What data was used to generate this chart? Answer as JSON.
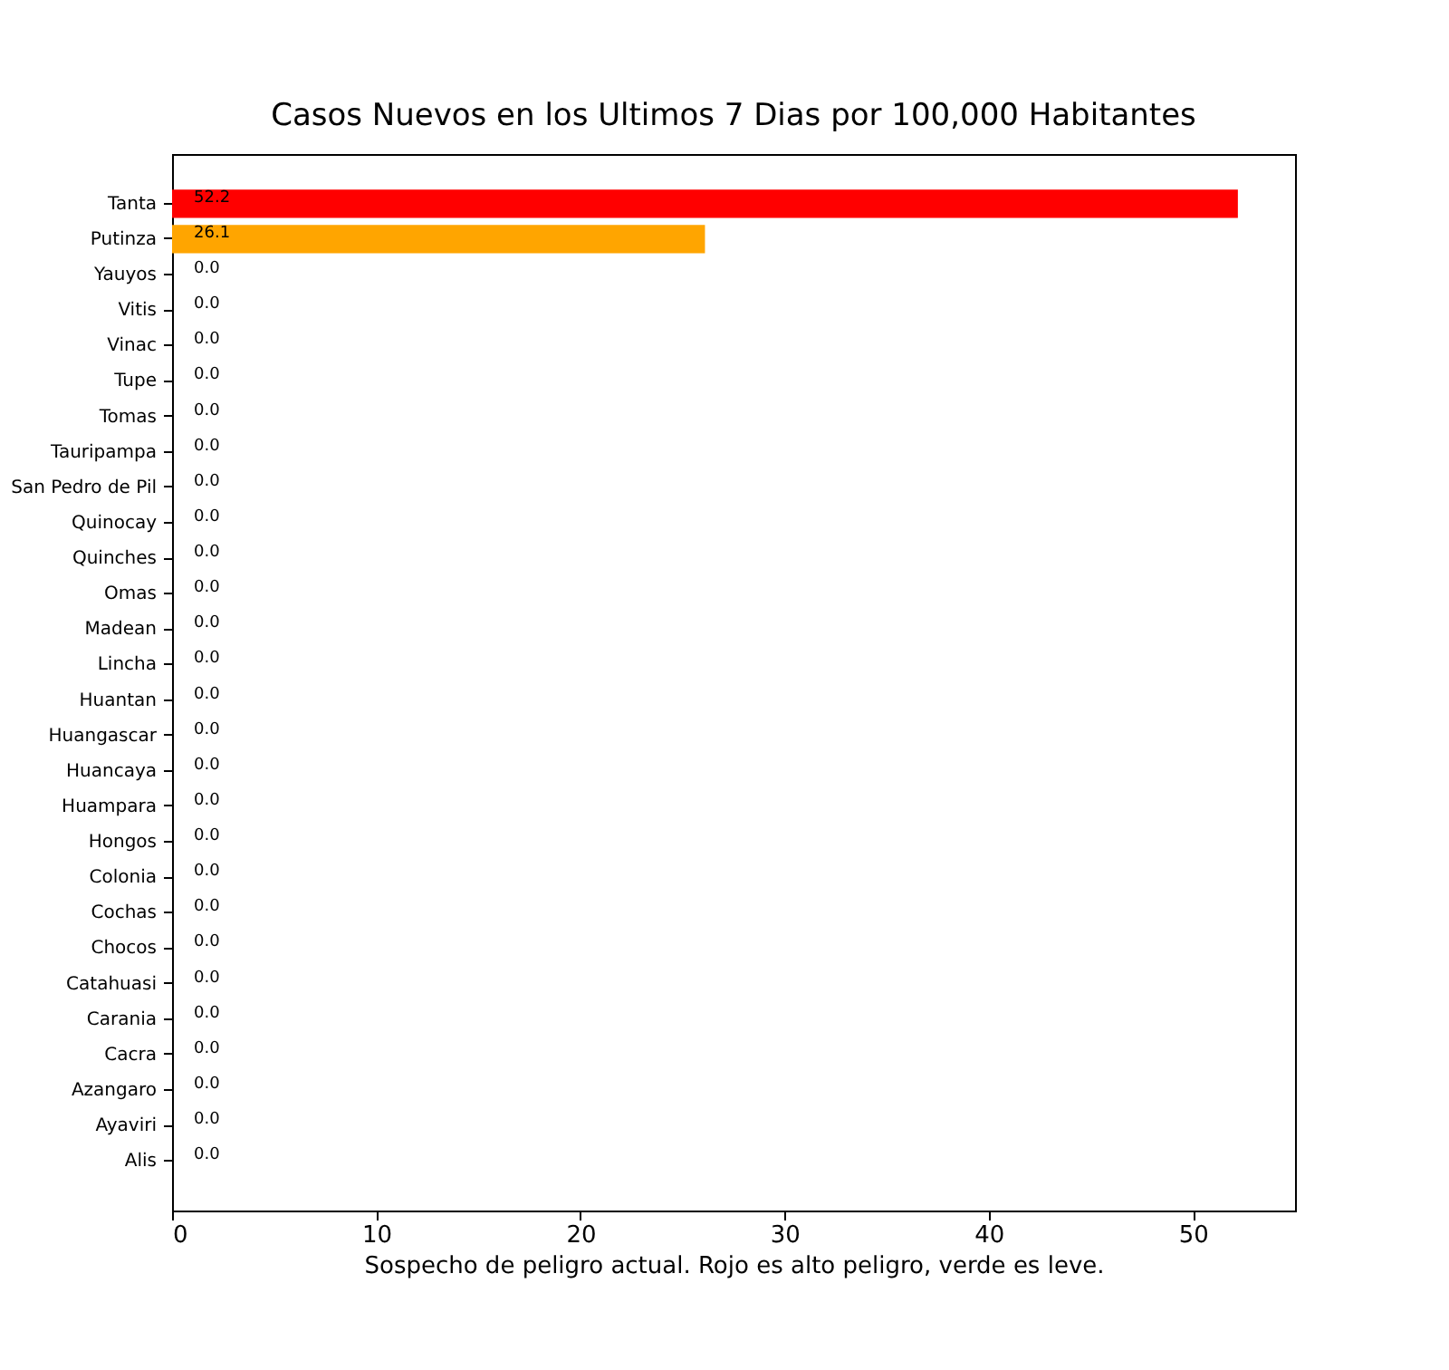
{
  "chart_data": {
    "type": "bar",
    "orientation": "horizontal",
    "title": "Casos Nuevos en los Ultimos 7 Dias por 100,000 Habitantes",
    "xlabel": "Sospecho de peligro actual. Rojo es alto peligro, verde es leve.",
    "categories": [
      "Tanta",
      "Putinza",
      "Yauyos",
      "Vitis",
      "Vinac",
      "Tupe",
      "Tomas",
      "Tauripampa",
      "San Pedro de Pil",
      "Quinocay",
      "Quinches",
      "Omas",
      "Madean",
      "Lincha",
      "Huantan",
      "Huangascar",
      "Huancaya",
      "Huampara",
      "Hongos",
      "Colonia",
      "Cochas",
      "Chocos",
      "Catahuasi",
      "Carania",
      "Cacra",
      "Azangaro",
      "Ayaviri",
      "Alis"
    ],
    "values": [
      52.2,
      26.1,
      0,
      0,
      0,
      0,
      0,
      0,
      0,
      0,
      0,
      0,
      0,
      0,
      0,
      0,
      0,
      0,
      0,
      0,
      0,
      0,
      0,
      0,
      0,
      0,
      0,
      0
    ],
    "value_labels": [
      "52.2",
      "26.1",
      "0.0",
      "0.0",
      "0.0",
      "0.0",
      "0.0",
      "0.0",
      "0.0",
      "0.0",
      "0.0",
      "0.0",
      "0.0",
      "0.0",
      "0.0",
      "0.0",
      "0.0",
      "0.0",
      "0.0",
      "0.0",
      "0.0",
      "0.0",
      "0.0",
      "0.0",
      "0.0",
      "0.0",
      "0.0",
      "0.0"
    ],
    "colors": [
      "#ff0000",
      "#ffa500",
      "#008000",
      "#008000",
      "#008000",
      "#008000",
      "#008000",
      "#008000",
      "#008000",
      "#008000",
      "#008000",
      "#008000",
      "#008000",
      "#008000",
      "#008000",
      "#008000",
      "#008000",
      "#008000",
      "#008000",
      "#008000",
      "#008000",
      "#008000",
      "#008000",
      "#008000",
      "#008000",
      "#008000",
      "#008000",
      "#008000"
    ],
    "xlim": [
      0,
      55
    ],
    "xticks": [
      0,
      10,
      20,
      30,
      40,
      50
    ],
    "grid": false
  }
}
